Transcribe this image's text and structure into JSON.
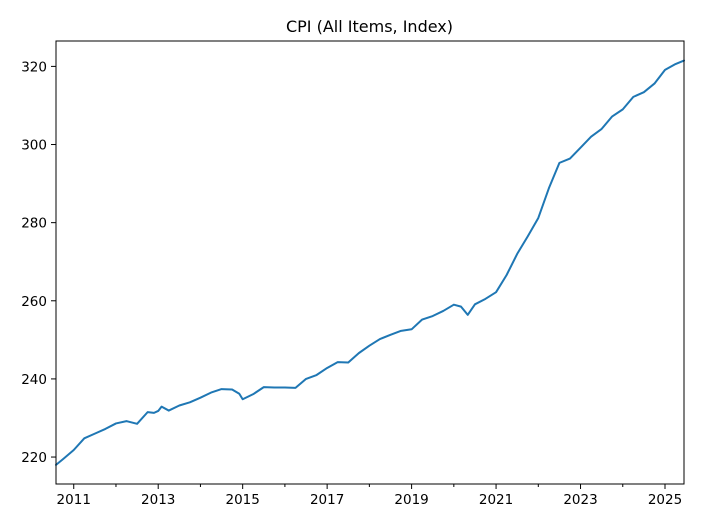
{
  "chart_data": {
    "type": "line",
    "title": "CPI (All Items, Index)",
    "xlabel": "",
    "ylabel": "",
    "xlim": [
      2010.58,
      2025.45
    ],
    "ylim": [
      213.1,
      326.5
    ],
    "grid": false,
    "line_color": "#1f77b4",
    "x_ticks": [
      2011,
      2013,
      2015,
      2017,
      2019,
      2021,
      2023,
      2025
    ],
    "x_tick_labels": [
      "2011",
      "2013",
      "2015",
      "2017",
      "2019",
      "2021",
      "2023",
      "2025"
    ],
    "x_minor_ticks": [
      2012,
      2014,
      2016,
      2018,
      2020,
      2022,
      2024
    ],
    "y_ticks": [
      220,
      240,
      260,
      280,
      300,
      320
    ],
    "y_tick_labels": [
      "220",
      "240",
      "260",
      "280",
      "300",
      "320"
    ],
    "series": [
      {
        "x": [
          2010.58,
          2010.75,
          2011.0,
          2011.25,
          2011.5,
          2011.75,
          2012.0,
          2012.25,
          2012.5,
          2012.75,
          2012.9,
          2013.0,
          2013.08,
          2013.25,
          2013.5,
          2013.75,
          2014.0,
          2014.25,
          2014.5,
          2014.75,
          2014.92,
          2015.0,
          2015.25,
          2015.5,
          2015.75,
          2016.0,
          2016.25,
          2016.5,
          2016.75,
          2017.0,
          2017.25,
          2017.5,
          2017.75,
          2018.0,
          2018.25,
          2018.5,
          2018.75,
          2019.0,
          2019.25,
          2019.5,
          2019.75,
          2020.0,
          2020.17,
          2020.33,
          2020.5,
          2020.75,
          2021.0,
          2021.25,
          2021.5,
          2021.75,
          2022.0,
          2022.25,
          2022.5,
          2022.75,
          2023.0,
          2023.25,
          2023.5,
          2023.75,
          2024.0,
          2024.25,
          2024.5,
          2024.75,
          2025.0,
          2025.25,
          2025.45
        ],
        "y": [
          218.0,
          219.5,
          221.8,
          224.8,
          226.0,
          227.2,
          228.6,
          229.2,
          228.5,
          231.5,
          231.3,
          231.8,
          232.9,
          231.9,
          233.2,
          234.0,
          235.2,
          236.5,
          237.4,
          237.3,
          236.2,
          234.8,
          236.1,
          237.9,
          237.8,
          237.8,
          237.7,
          240.0,
          241.0,
          242.8,
          244.3,
          244.2,
          246.6,
          248.5,
          250.2,
          251.3,
          252.3,
          252.7,
          255.2,
          256.1,
          257.4,
          259.0,
          258.5,
          256.4,
          259.1,
          260.5,
          262.2,
          266.6,
          272.0,
          276.5,
          281.2,
          288.8,
          295.3,
          296.4,
          299.2,
          302.0,
          304.0,
          307.2,
          309.0,
          312.2,
          313.4,
          315.6,
          319.1,
          320.6,
          321.5
        ]
      }
    ]
  }
}
